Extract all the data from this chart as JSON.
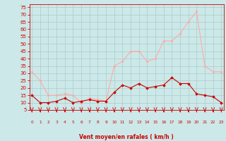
{
  "hours": [
    0,
    1,
    2,
    3,
    4,
    5,
    6,
    7,
    8,
    9,
    10,
    11,
    12,
    13,
    14,
    15,
    16,
    17,
    18,
    19,
    20,
    21,
    22,
    23
  ],
  "wind_avg": [
    15,
    10,
    10,
    11,
    13,
    10,
    11,
    12,
    11,
    11,
    17,
    22,
    20,
    23,
    20,
    21,
    22,
    27,
    23,
    23,
    16,
    15,
    14,
    10
  ],
  "wind_gust": [
    31,
    25,
    15,
    15,
    16,
    15,
    10,
    13,
    12,
    11,
    35,
    38,
    45,
    45,
    38,
    40,
    52,
    52,
    57,
    65,
    72,
    35,
    31,
    31
  ],
  "color_avg": "#cc0000",
  "color_gust": "#ffaaaa",
  "bg_color": "#cce8e8",
  "grid_color": "#aacccc",
  "xlabel": "Vent moyen/en rafales ( km/h )",
  "xlabel_color": "#cc0000",
  "tick_color": "#cc0000",
  "ylim_min": 5,
  "ylim_max": 77,
  "yticks": [
    5,
    10,
    15,
    20,
    25,
    30,
    35,
    40,
    45,
    50,
    55,
    60,
    65,
    70,
    75
  ],
  "arrow_color": "#cc0000",
  "marker_avg": "D",
  "marker_gust": "s",
  "linewidth": 0.8,
  "markersize": 1.8
}
